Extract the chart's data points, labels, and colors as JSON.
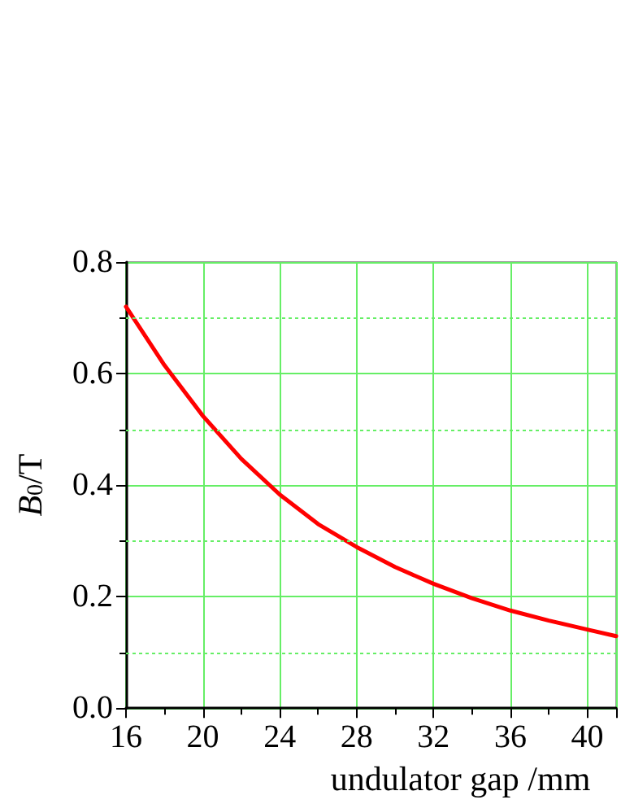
{
  "chart_data": {
    "type": "line",
    "xlabel": "undulator gap /mm",
    "ylabel": "B$_{0}$/T",
    "x": [
      16,
      18,
      20,
      22,
      24,
      26,
      28,
      30,
      32,
      34,
      36,
      38,
      40,
      41.5
    ],
    "series": [
      {
        "color": "#ff0000",
        "values": [
          0.72,
          0.615,
          0.524,
          0.447,
          0.383,
          0.33,
          0.289,
          0.253,
          0.223,
          0.197,
          0.175,
          0.157,
          0.141,
          0.129
        ]
      }
    ],
    "xlim": [
      16,
      41.5
    ],
    "xticks": [
      16,
      20,
      24,
      28,
      32,
      36,
      40
    ],
    "ylim": [
      0,
      0.8
    ],
    "yticks": [
      {
        "value": 0,
        "label": "0.0"
      },
      {
        "value": 0.2,
        "label": "0.2"
      },
      {
        "value": 0.4,
        "label": "0.4"
      },
      {
        "value": 0.6,
        "label": "0.6"
      },
      {
        "value": 0.8,
        "label": "0.8"
      }
    ],
    "ref_lines": [
      {
        "axis": "y",
        "value": 0.1,
        "color": "#66ee66",
        "line_style": "dotted"
      },
      {
        "axis": "y",
        "value": 0.3,
        "color": "#66ee66",
        "line_style": "dotted"
      },
      {
        "axis": "y",
        "value": 0.5,
        "color": "#66ee66",
        "line_style": "dotted"
      },
      {
        "axis": "y",
        "value": 0.7,
        "color": "#66ee66",
        "line_style": "dotted"
      }
    ],
    "grid": true,
    "marker": "none",
    "line_style": "solid"
  }
}
